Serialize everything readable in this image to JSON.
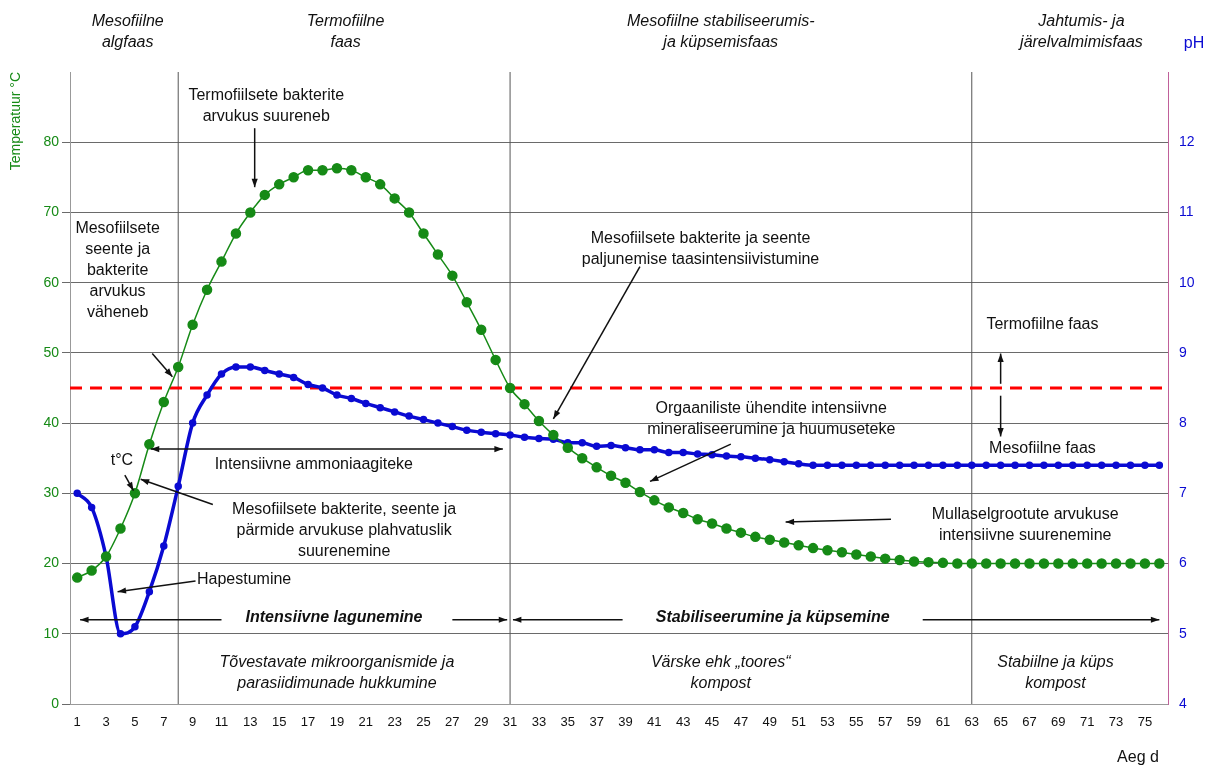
{
  "chart_data": {
    "type": "line",
    "xlabel": "Aeg d",
    "ylabel": "Temperatuur °C",
    "y2label": "pH",
    "x": [
      1,
      2,
      3,
      4,
      5,
      6,
      7,
      8,
      9,
      10,
      11,
      12,
      13,
      14,
      15,
      16,
      17,
      18,
      19,
      20,
      21,
      22,
      23,
      24,
      25,
      26,
      27,
      28,
      29,
      30,
      31,
      32,
      33,
      34,
      35,
      36,
      37,
      38,
      39,
      40,
      41,
      42,
      43,
      44,
      45,
      46,
      47,
      48,
      49,
      50,
      51,
      52,
      53,
      54,
      55,
      56,
      57,
      58,
      59,
      60,
      61,
      62,
      63,
      64,
      65,
      66,
      67,
      68,
      69,
      70,
      71,
      72,
      73,
      74,
      75,
      76
    ],
    "series": [
      {
        "color": "#168a16",
        "values": [
          18,
          19,
          21,
          25,
          30,
          37,
          43,
          48,
          54,
          59,
          63,
          67,
          70,
          72.5,
          74,
          75,
          76,
          76,
          76.3,
          76,
          75,
          74,
          72,
          70,
          67,
          64,
          61,
          57.2,
          53.3,
          49,
          45,
          42.7,
          40.3,
          38.3,
          36.5,
          35,
          33.7,
          32.5,
          31.5,
          30.2,
          29,
          28,
          27.2,
          26.3,
          25.7,
          25,
          24.4,
          23.8,
          23.4,
          23,
          22.6,
          22.2,
          21.9,
          21.6,
          21.3,
          21,
          20.7,
          20.5,
          20.3,
          20.2,
          20.1,
          20,
          20,
          20,
          20,
          20,
          20,
          20,
          20,
          20,
          20,
          20,
          20,
          20,
          20,
          20
        ]
      },
      {
        "color": "#0a0ad2",
        "axis": "y2",
        "values": [
          7.0,
          6.8,
          6.1,
          5.0,
          5.1,
          5.6,
          6.25,
          7.1,
          8.0,
          8.4,
          8.7,
          8.8,
          8.8,
          8.75,
          8.7,
          8.65,
          8.55,
          8.5,
          8.4,
          8.35,
          8.28,
          8.22,
          8.16,
          8.1,
          8.05,
          8.0,
          7.95,
          7.9,
          7.87,
          7.85,
          7.83,
          7.8,
          7.78,
          7.77,
          7.72,
          7.72,
          7.67,
          7.68,
          7.65,
          7.62,
          7.62,
          7.58,
          7.58,
          7.56,
          7.55,
          7.53,
          7.52,
          7.5,
          7.48,
          7.45,
          7.42,
          7.4,
          7.4,
          7.4,
          7.4,
          7.4,
          7.4,
          7.4,
          7.4,
          7.4,
          7.4,
          7.4,
          7.4,
          7.4,
          7.4,
          7.4,
          7.4,
          7.4,
          7.4,
          7.4,
          7.4,
          7.4,
          7.4,
          7.4,
          7.4,
          7.4
        ]
      }
    ],
    "xlim": [
      0.5,
      76.6
    ],
    "xticks": [
      1,
      3,
      5,
      7,
      9,
      11,
      13,
      15,
      17,
      19,
      21,
      23,
      25,
      27,
      29,
      31,
      33,
      35,
      37,
      39,
      41,
      43,
      45,
      47,
      49,
      51,
      53,
      55,
      57,
      59,
      61,
      63,
      65,
      67,
      69,
      71,
      73,
      75
    ],
    "ylim": [
      0,
      90
    ],
    "yticks": [
      0,
      10,
      20,
      30,
      40,
      50,
      60,
      70,
      80
    ],
    "y2lim": [
      4,
      13
    ],
    "y2ticks": [
      4,
      5,
      6,
      7,
      8,
      9,
      10,
      11,
      12
    ],
    "grid": "y",
    "legend": false,
    "marker": "circle",
    "ref_lines": [
      {
        "axis": "x",
        "value": 8,
        "color": "#555555"
      },
      {
        "axis": "x",
        "value": 31,
        "color": "#555555"
      },
      {
        "axis": "x",
        "value": 63,
        "color": "#555555"
      },
      {
        "axis": "y",
        "value": 45,
        "color": "#ff0000",
        "line_style": "dashed"
      }
    ],
    "annotations": [
      "Mesofiilne\nalgfaas",
      "Termofiilne\nfaas",
      "Mesofiilne stabiliseerumis-\nja küpsemisfaas",
      "Jahtumis- ja\njärelvalmimisfaas",
      "Termofiilsete bakterite\narvukus suureneb",
      "Mesofiilsete\nseente ja\nbakterite\narvukus\nväheneb",
      "Mesofiilsete bakterite ja seente\npaljunemise taasintensiivistumine",
      "Termofiilne faas",
      "Mesofiilne faas",
      "Orgaaniliste ühendite intensiivne\nmineraliseerumine ja huumuseteke",
      "Intensiivne ammoniaagiteke",
      "t°C",
      {
        "text": "Mesofiilsete bakterite, seente ja\npärmide arvukuse plahvatuslik\nsuurenemine",
        "x": 5.4,
        "y": 32
      },
      "Hapestumine",
      "Mullaselgrootute arvukuse\nintensiivne suurenemine",
      "Intensiivne lagunemine",
      "Stabiliseerumine ja küpsemine",
      "Tõvestavate mikroorganismide ja\nparasiidimunade hukkumine",
      "Värske ehk „toores“\nkompost",
      "Stabiilne ja küps\nkompost"
    ]
  }
}
